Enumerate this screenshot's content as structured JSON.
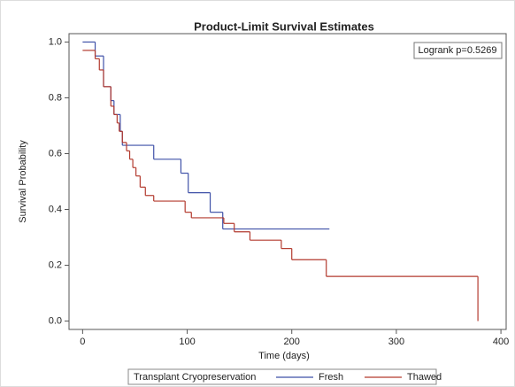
{
  "chart_data": {
    "type": "step",
    "title": "Product-Limit Survival Estimates",
    "xlabel": "Time (days)",
    "ylabel": "Survival Probability",
    "annotation": "Logrank p=0.5269",
    "legend_title": "Transplant Cryopreservation",
    "legend": "bottom",
    "xlim": [
      -13,
      405
    ],
    "ylim": [
      -0.03,
      1.03
    ],
    "xticks": [
      0,
      100,
      200,
      300,
      400
    ],
    "yticks": [
      {
        "value": 0,
        "label": "0.0"
      },
      0.2,
      0.4,
      0.6,
      0.8,
      {
        "value": 1,
        "label": "1.0"
      }
    ],
    "series": [
      {
        "name": "Fresh",
        "color": "#3f51a8",
        "x": [
          0,
          12,
          20,
          27,
          30,
          36,
          38,
          68,
          94,
          101,
          122,
          134,
          236
        ],
        "values": [
          1,
          0.95,
          0.84,
          0.79,
          0.74,
          0.68,
          0.63,
          0.58,
          0.53,
          0.46,
          0.39,
          0.33,
          0.33
        ]
      },
      {
        "name": "Thawed",
        "color": "#b33a2e",
        "x": [
          0,
          12,
          16,
          20,
          27,
          30,
          33,
          35,
          38,
          42,
          45,
          48,
          51,
          55,
          60,
          68,
          98,
          104,
          135,
          145,
          160,
          190,
          200,
          233,
          378
        ],
        "values": [
          0.97,
          0.94,
          0.9,
          0.84,
          0.77,
          0.74,
          0.71,
          0.68,
          0.64,
          0.61,
          0.58,
          0.55,
          0.52,
          0.48,
          0.45,
          0.43,
          0.39,
          0.37,
          0.35,
          0.32,
          0.29,
          0.26,
          0.22,
          0.16,
          0
        ]
      }
    ]
  }
}
